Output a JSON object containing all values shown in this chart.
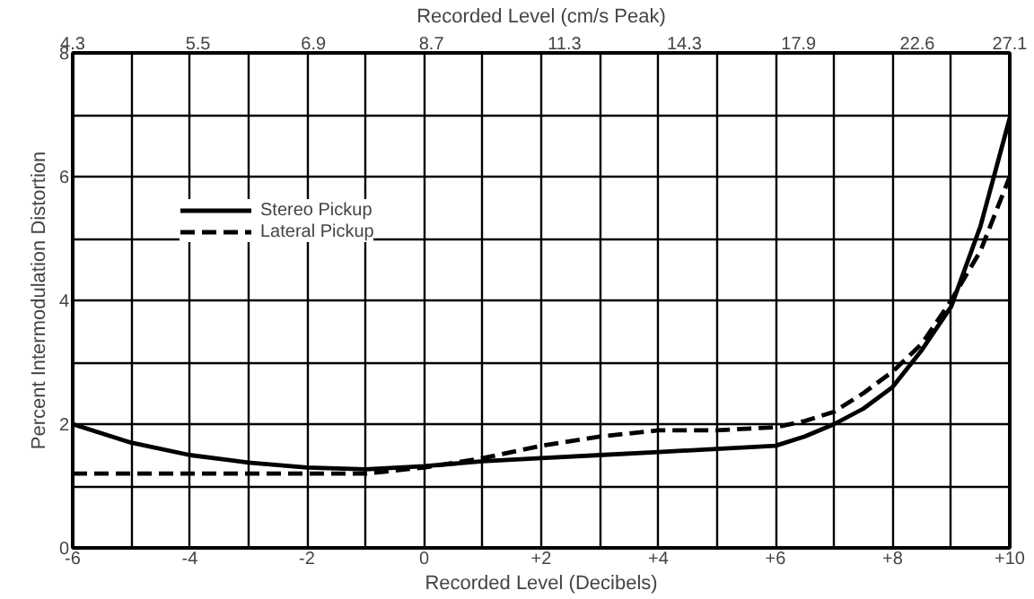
{
  "chart_data": {
    "type": "line",
    "xlabel": "Recorded Level (Decibels)",
    "x2label": "Recorded Level (cm/s Peak)",
    "ylabel": "Percent Intermodulation Distortion",
    "xlim": [
      -6,
      10
    ],
    "ylim": [
      0,
      8
    ],
    "x2lim": [
      4.3,
      27.1
    ],
    "log": "x2",
    "xticks": [
      -6,
      {
        "value": -5,
        "label": null
      },
      -4,
      {
        "value": -3,
        "label": null
      },
      -2,
      {
        "value": -1,
        "label": null
      },
      0,
      {
        "value": 1,
        "label": null
      },
      {
        "value": 2,
        "label": "+2"
      },
      {
        "value": 3,
        "label": null
      },
      {
        "value": 4,
        "label": "+4"
      },
      {
        "value": 5,
        "label": null
      },
      {
        "value": 6,
        "label": "+6"
      },
      {
        "value": 7,
        "label": null
      },
      {
        "value": 8,
        "label": "+8"
      },
      {
        "value": 9,
        "label": null
      },
      {
        "value": 10,
        "label": "+10"
      }
    ],
    "x2ticks": [
      4.3,
      5.5,
      6.9,
      8.7,
      11.3,
      14.3,
      17.9,
      22.6,
      27.1
    ],
    "yticks": [
      0,
      {
        "value": 1,
        "label": null
      },
      2,
      {
        "value": 3,
        "label": null
      },
      4,
      {
        "value": 5,
        "label": null
      },
      6,
      {
        "value": 7,
        "label": null
      },
      8
    ],
    "x": [
      -6,
      -5,
      -4,
      -3,
      -2,
      -1,
      0,
      1,
      2,
      3,
      4,
      5,
      6,
      6.5,
      7,
      7.5,
      8,
      8.5,
      9,
      9.5,
      10
    ],
    "series": [
      {
        "name": "Stereo Pickup",
        "color": "#000000",
        "line_style": "solid",
        "values": [
          2.0,
          1.7,
          1.5,
          1.38,
          1.3,
          1.27,
          1.32,
          1.4,
          1.45,
          1.5,
          1.55,
          1.6,
          1.65,
          1.8,
          2.0,
          2.25,
          2.6,
          3.2,
          3.9,
          5.2,
          6.95
        ]
      },
      {
        "name": "Lateral Pickup",
        "color": "#000000",
        "line_style": "dashed",
        "values": [
          1.2,
          1.2,
          1.2,
          1.2,
          1.2,
          1.2,
          1.3,
          1.45,
          1.65,
          1.8,
          1.9,
          1.9,
          1.95,
          2.05,
          2.2,
          2.5,
          2.85,
          3.3,
          4.0,
          4.8,
          6.0
        ]
      }
    ],
    "grid": true,
    "legend": "top left"
  }
}
